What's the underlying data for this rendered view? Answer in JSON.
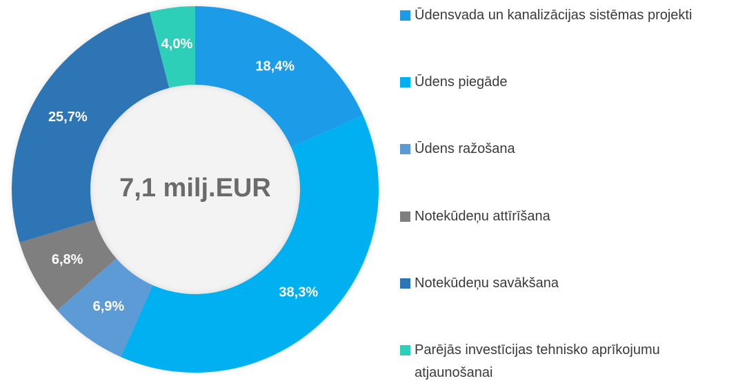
{
  "chart_data": {
    "type": "donut",
    "categories": [
      "Ūdensvada un kanalizācijas sistēmas projekti",
      "Ūdens piegāde",
      "Ūdens ražošana",
      "Notekūdeņu attīrīšana",
      "Notekūdeņu savākšana",
      "Parējās investīcijas tehnisko aprīkojumu atjaunošanai"
    ],
    "values": [
      18.4,
      38.3,
      6.9,
      6.8,
      25.7,
      4.0
    ],
    "value_labels": [
      "18,4%",
      "38,3%",
      "6,9%",
      "6,8%",
      "25,7%",
      "4,0%"
    ],
    "colors": [
      "#1e9be8",
      "#00b0f0",
      "#5b9bd5",
      "#7f7f7f",
      "#2e75b6",
      "#2ecfb9"
    ],
    "center_label": "7,1 milj.EUR",
    "legend": "right"
  }
}
